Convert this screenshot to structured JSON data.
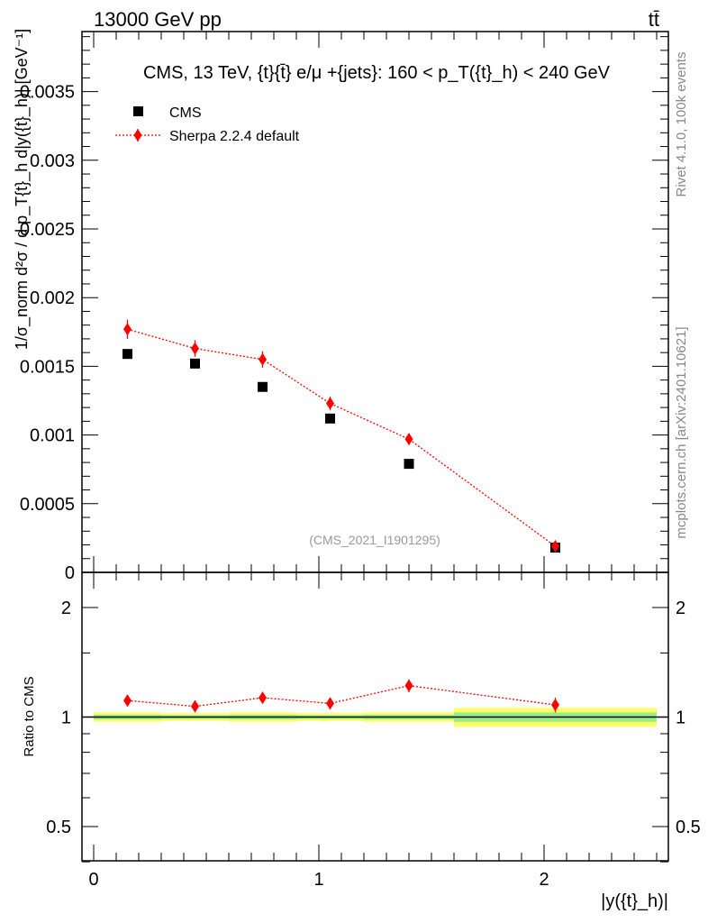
{
  "header": {
    "left": "13000 GeV pp",
    "right": "tt̄"
  },
  "side_labels": {
    "rivet": "Rivet 4.1.0,  100k events",
    "mcplots": "mcplots.cern.ch [arXiv:2401.10621]"
  },
  "chart_data": [
    {
      "type": "scatter",
      "title": "CMS, 13 TeV, {t}{t̄} e/μ +{jets}: 160 <  p_T({t}_h) < 240 GeV",
      "ylabel": "1/σ_norm d²σ / d p_T{t}_h d|y({t}_h)| [GeV⁻¹]",
      "xlabel": "|y({t}_h)|",
      "xlim": [
        -0.05,
        2.55
      ],
      "ylim": [
        0,
        0.004
      ],
      "yticks": [
        "0",
        "0.0005",
        "0.001",
        "0.0015",
        "0.002",
        "0.0025",
        "0.003",
        "0.0035"
      ],
      "watermark": "(CMS_2021_I1901295)",
      "legend_position": "top-left",
      "series": [
        {
          "name": "CMS",
          "marker": "square",
          "color": "#000000",
          "x": [
            0.15,
            0.45,
            0.75,
            1.05,
            1.4,
            2.05
          ],
          "values": [
            0.00159,
            0.00152,
            0.00135,
            0.00112,
            0.00079,
            0.00018
          ]
        },
        {
          "name": "Sherpa 2.2.4 default",
          "marker": "diamond",
          "line": "dotted",
          "color": "#ff0000",
          "x": [
            0.15,
            0.45,
            0.75,
            1.05,
            1.4,
            2.05
          ],
          "values": [
            0.00177,
            0.00163,
            0.00155,
            0.00123,
            0.00097,
            0.00019
          ],
          "errors": [
            7e-05,
            6e-05,
            6e-05,
            5e-05,
            4e-05,
            2e-05
          ]
        }
      ]
    },
    {
      "type": "scatter",
      "ylabel": "Ratio to CMS",
      "xlabel": "|y({t}_h)|",
      "xlim": [
        -0.05,
        2.55
      ],
      "ylim": [
        0.35,
        2.25
      ],
      "yticks": [
        "0.5",
        "1",
        "2"
      ],
      "xticks": [
        "0",
        "1",
        "2"
      ],
      "band": {
        "x_edges": [
          0.0,
          0.3,
          0.6,
          0.9,
          1.2,
          1.6,
          2.5
        ],
        "yellow_half_width": [
          0.03,
          0.025,
          0.03,
          0.025,
          0.03,
          0.06
        ],
        "green_half_width": [
          0.015,
          0.012,
          0.015,
          0.012,
          0.015,
          0.03
        ]
      },
      "series": [
        {
          "name": "Sherpa 2.2.4 default",
          "color": "#ff0000",
          "x": [
            0.15,
            0.45,
            0.75,
            1.05,
            1.4,
            2.05
          ],
          "values": [
            1.11,
            1.07,
            1.13,
            1.09,
            1.22,
            1.08
          ],
          "errors": [
            0.04,
            0.04,
            0.04,
            0.04,
            0.05,
            0.05
          ]
        }
      ]
    }
  ]
}
